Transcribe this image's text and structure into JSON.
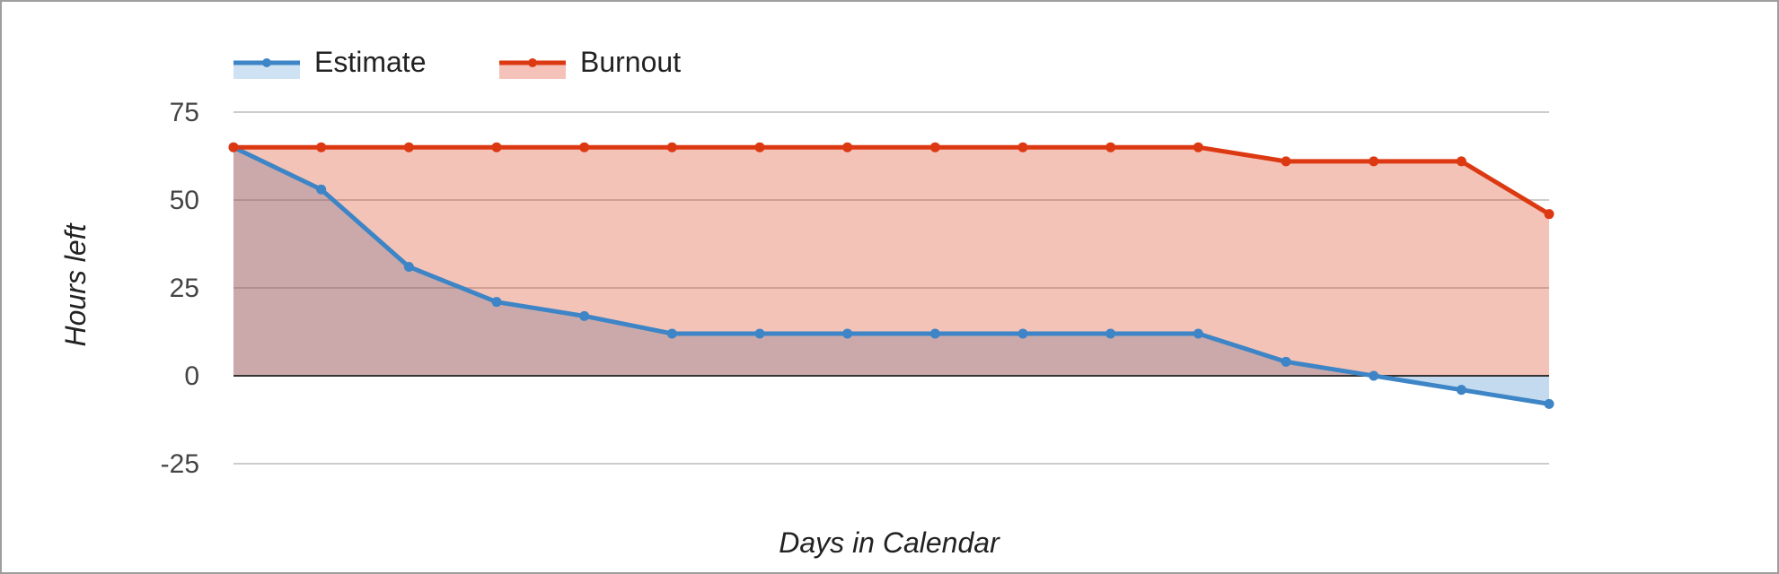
{
  "chart_data": {
    "type": "area",
    "xlabel": "Days in Calendar",
    "ylabel": "Hours left",
    "ylim": [
      -25,
      75
    ],
    "yticks": [
      75,
      50,
      25,
      0,
      -25
    ],
    "x": [
      1,
      2,
      3,
      4,
      5,
      6,
      7,
      8,
      9,
      10,
      11,
      12,
      13,
      14,
      15,
      16
    ],
    "grid": true,
    "legend": "top-left",
    "series": [
      {
        "name": "Estimate",
        "color": "#3d85c6",
        "fill": "#cfe2f3",
        "values": [
          65,
          53,
          31,
          21,
          17,
          12,
          12,
          12,
          12,
          12,
          12,
          12,
          4,
          0,
          -4,
          -8
        ]
      },
      {
        "name": "Burnout",
        "color": "#dc3912",
        "fill": "#f4c2b8",
        "values": [
          65,
          65,
          65,
          65,
          65,
          65,
          65,
          65,
          65,
          65,
          65,
          65,
          61,
          61,
          61,
          46
        ]
      }
    ]
  }
}
